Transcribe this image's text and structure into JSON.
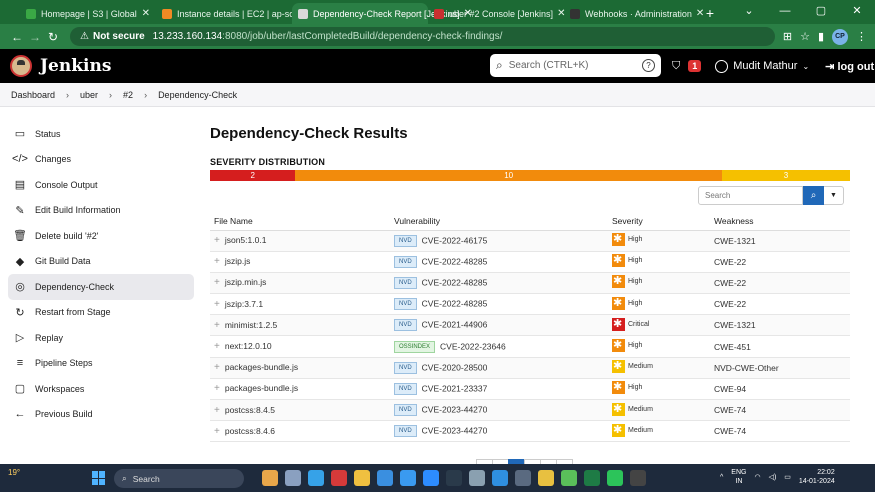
{
  "browser": {
    "tabs": [
      {
        "title": "Homepage | S3 | Global",
        "color": "#3aa845",
        "active": false
      },
      {
        "title": "Instance details | EC2 | ap-south-1",
        "color": "#f08a24",
        "active": false
      },
      {
        "title": "Dependency-Check Report [Jenkins]",
        "color": "#d9d9d9",
        "active": true
      },
      {
        "title": "uber #2 Console [Jenkins]",
        "color": "#c93030",
        "active": false
      },
      {
        "title": "Webhooks · Administration",
        "color": "#333333",
        "active": false
      }
    ],
    "new_tab": "+",
    "window_controls": [
      "⌄",
      "—",
      "▢",
      "✕"
    ],
    "security_label": "Not secure",
    "url_host": "13.233.160.134",
    "url_path": ":8080/job/uber/lastCompletedBuild/dependency-check-findings/",
    "profile_initials": "CP"
  },
  "header": {
    "title": "Jenkins",
    "search_placeholder": "Search (CTRL+K)",
    "notification_count": "1",
    "user_name": "Mudit Mathur",
    "logout_label": "log out"
  },
  "breadcrumbs": [
    "Dashboard",
    "uber",
    "#2",
    "Dependency-Check"
  ],
  "sidebar": {
    "items": [
      {
        "label": "Status",
        "icon": "▭"
      },
      {
        "label": "Changes",
        "icon": "</>"
      },
      {
        "label": "Console Output",
        "icon": "▤"
      },
      {
        "label": "Edit Build Information",
        "icon": "✎"
      },
      {
        "label": "Delete build '#2'",
        "icon": "🗑"
      },
      {
        "label": "Git Build Data",
        "icon": "◆"
      },
      {
        "label": "Dependency-Check",
        "icon": "◎"
      },
      {
        "label": "Restart from Stage",
        "icon": "↻"
      },
      {
        "label": "Replay",
        "icon": "▷"
      },
      {
        "label": "Pipeline Steps",
        "icon": "≡"
      },
      {
        "label": "Workspaces",
        "icon": "▢"
      },
      {
        "label": "Previous Build",
        "icon": "←"
      }
    ],
    "active_index": 6
  },
  "main": {
    "title": "Dependency-Check Results",
    "severity_label": "SEVERITY DISTRIBUTION",
    "severity_distribution": [
      {
        "count": "2",
        "value": 2,
        "color": "#d51e1e"
      },
      {
        "count": "10",
        "value": 10,
        "color": "#f28b0c"
      },
      {
        "count": "3",
        "value": 3,
        "color": "#f5c000"
      }
    ],
    "search_placeholder": "Search",
    "columns": [
      "File Name",
      "Vulnerability",
      "Severity",
      "Weakness"
    ],
    "rows": [
      {
        "file": "json5:1.0.1",
        "source": "NVD",
        "cve": "CVE-2022-46175",
        "severity": "High",
        "weakness": "CWE-1321"
      },
      {
        "file": "jszip.js",
        "source": "NVD",
        "cve": "CVE-2022-48285",
        "severity": "High",
        "weakness": "CWE-22"
      },
      {
        "file": "jszip.min.js",
        "source": "NVD",
        "cve": "CVE-2022-48285",
        "severity": "High",
        "weakness": "CWE-22"
      },
      {
        "file": "jszip:3.7.1",
        "source": "NVD",
        "cve": "CVE-2022-48285",
        "severity": "High",
        "weakness": "CWE-22"
      },
      {
        "file": "minimist:1.2.5",
        "source": "NVD",
        "cve": "CVE-2021-44906",
        "severity": "Critical",
        "weakness": "CWE-1321"
      },
      {
        "file": "next:12.0.10",
        "source": "OSSINDEX",
        "cve": "CVE-2022-23646",
        "severity": "High",
        "weakness": "CWE-451"
      },
      {
        "file": "packages-bundle.js",
        "source": "NVD",
        "cve": "CVE-2020-28500",
        "severity": "Medium",
        "weakness": "NVD-CWE-Other"
      },
      {
        "file": "packages-bundle.js",
        "source": "NVD",
        "cve": "CVE-2021-23337",
        "severity": "High",
        "weakness": "CWE-94"
      },
      {
        "file": "postcss:8.4.5",
        "source": "NVD",
        "cve": "CVE-2023-44270",
        "severity": "Medium",
        "weakness": "CWE-74"
      },
      {
        "file": "postcss:8.4.6",
        "source": "NVD",
        "cve": "CVE-2023-44270",
        "severity": "Medium",
        "weakness": "CWE-74"
      }
    ],
    "severity_colors": {
      "Critical": "#d51e1e",
      "High": "#f28b0c",
      "Medium": "#f5c000"
    }
  },
  "taskbar": {
    "weather": "19°",
    "search_label": "Search",
    "lang": "ENG",
    "region": "IN",
    "time": "22:02",
    "date": "14-01-2024"
  }
}
